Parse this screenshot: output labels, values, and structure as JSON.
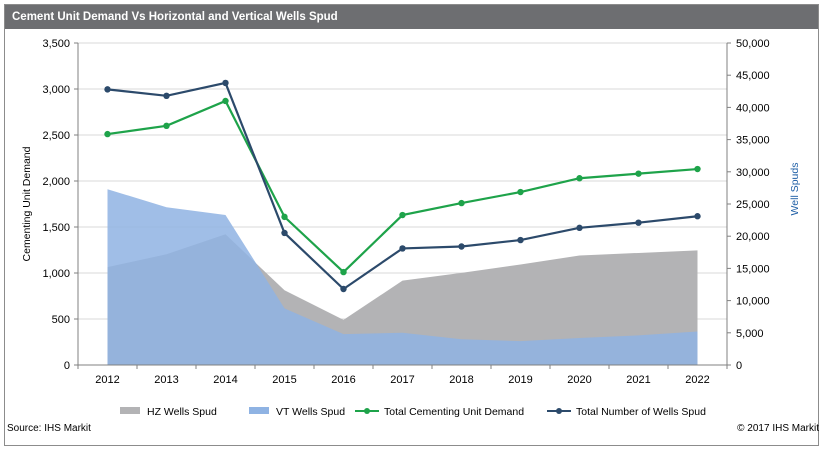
{
  "header": {
    "title": "Cement Unit Demand Vs Horizontal and Vertical Wells Spud"
  },
  "footer": {
    "source": "Source: IHS Markit",
    "copyright": "© 2017 IHS Markit"
  },
  "chart_data": {
    "type": "area",
    "categories": [
      "2012",
      "2013",
      "2014",
      "2015",
      "2016",
      "2017",
      "2018",
      "2019",
      "2020",
      "2021",
      "2022"
    ],
    "ylabel": "Cementing Unit Demand",
    "y2label": "Well Spuds",
    "ylim": [
      0,
      3500
    ],
    "y2lim": [
      0,
      50000
    ],
    "yticks": [
      "0",
      "500",
      "1,000",
      "1,500",
      "2,000",
      "2,500",
      "3,000",
      "3,500"
    ],
    "y2ticks": [
      "0",
      "5,000",
      "10,000",
      "15,000",
      "20,000",
      "25,000",
      "30,000",
      "35,000",
      "40,000",
      "45,000",
      "50,000"
    ],
    "series": [
      {
        "name": "HZ Wells Spud",
        "type": "area",
        "axis": "right",
        "color": "#b3b3b5",
        "values": [
          15200,
          17200,
          20300,
          11600,
          7000,
          13100,
          14300,
          15600,
          17000,
          17400,
          17800
        ]
      },
      {
        "name": "VT Wells Spud",
        "type": "area",
        "axis": "right",
        "color": "#8fb3e3",
        "values": [
          27300,
          24500,
          23300,
          8800,
          4800,
          5000,
          4000,
          3700,
          4200,
          4600,
          5200
        ]
      },
      {
        "name": "Total Cementing Unit Demand",
        "type": "line",
        "axis": "left",
        "color": "#1ea34a",
        "values": [
          2510,
          2600,
          2870,
          1610,
          1010,
          1630,
          1760,
          1880,
          2030,
          2080,
          2130
        ]
      },
      {
        "name": "Total Number of Wells Spud",
        "type": "line",
        "axis": "right",
        "color": "#2c4a6b",
        "values": [
          42800,
          41800,
          43800,
          20500,
          11800,
          18100,
          18400,
          19400,
          21300,
          22100,
          23100
        ]
      }
    ],
    "legend": [
      "HZ Wells Spud",
      "VT Wells Spud",
      "Total Cementing Unit Demand",
      "Total Number of Wells Spud"
    ],
    "legend_position": "bottom"
  }
}
